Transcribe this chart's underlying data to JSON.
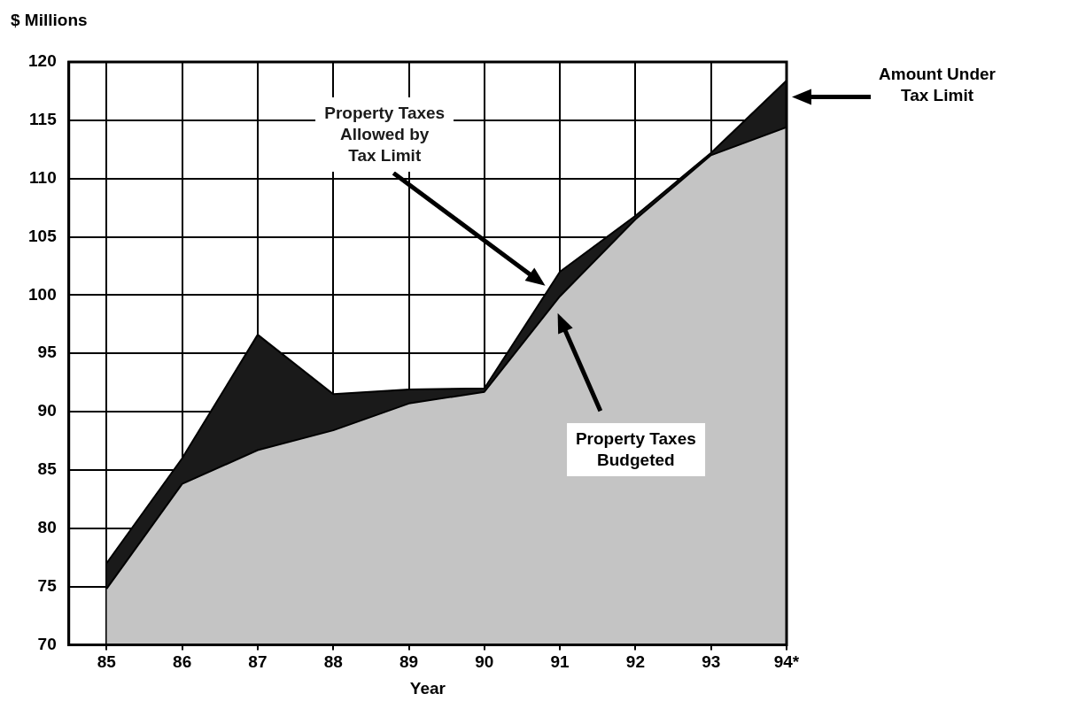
{
  "chart_data": {
    "type": "area",
    "ylabel": "$ Millions",
    "xlabel": "Year",
    "x": [
      85,
      86,
      87,
      88,
      89,
      90,
      91,
      92,
      93,
      94
    ],
    "series": [
      {
        "name": "Property Taxes Budgeted",
        "color": "#c4c4c4",
        "values": [
          74.8,
          83.8,
          86.7,
          88.4,
          90.7,
          91.7,
          99.9,
          106.5,
          112.0,
          114.4
        ]
      },
      {
        "name": "Property Taxes Allowed by Tax Limit",
        "color": "#1a1a1a",
        "values": [
          77.0,
          86.0,
          96.6,
          91.5,
          91.9,
          92.0,
          102.0,
          106.8,
          112.2,
          118.4
        ]
      }
    ],
    "xlim": [
      84.5,
      94
    ],
    "xticks": [
      85,
      86,
      87,
      88,
      89,
      90,
      91,
      92,
      93,
      {
        "value": 94,
        "label": "94*"
      }
    ],
    "ylim": [
      70,
      120
    ],
    "yticks": [
      70,
      75,
      80,
      85,
      90,
      95,
      100,
      105,
      110,
      115,
      120
    ],
    "grid": true,
    "legend": false,
    "annotations": [
      "Amount Under Tax Limit"
    ]
  }
}
